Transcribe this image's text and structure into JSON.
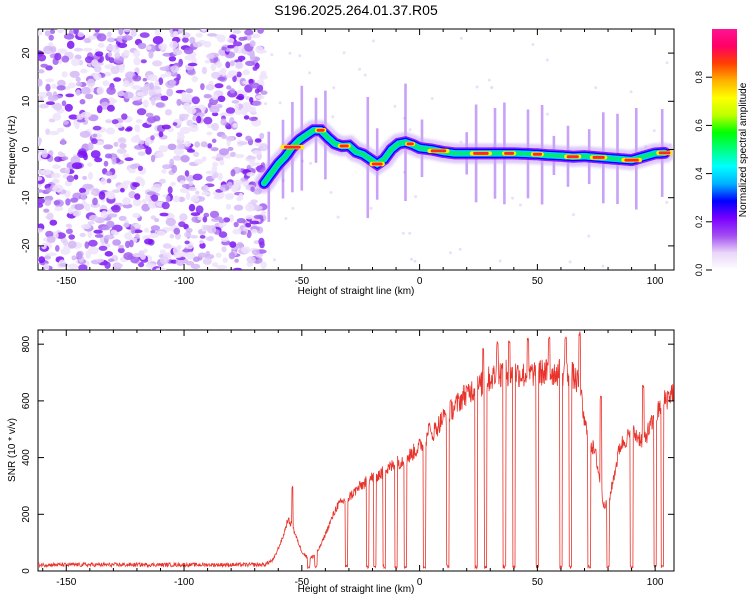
{
  "title": "S196.2025.264.01.37.R05",
  "chart_data": [
    {
      "type": "heatmap",
      "xlabel": "Height of straight line (km)",
      "ylabel": "Frequency (Hz)",
      "xlim": [
        -162,
        108
      ],
      "ylim": [
        -25,
        25
      ],
      "xticks": [
        -150,
        -100,
        -50,
        0,
        50,
        100
      ],
      "yticks": [
        -20,
        -10,
        0,
        10,
        20
      ],
      "colorbar": {
        "label": "Normalized spectral amplitude",
        "range": [
          0,
          1
        ],
        "ticks": [
          0.0,
          0.2,
          0.4,
          0.6,
          0.8
        ],
        "tick_labels": [
          "0.0",
          "0.2",
          "0.4",
          "0.6",
          "0.8"
        ],
        "colors": [
          "#ffffff",
          "#e9d6f9",
          "#a24cf2",
          "#7a00ff",
          "#0000ff",
          "#00b0ff",
          "#00ffff",
          "#00ff80",
          "#00ff00",
          "#bfff00",
          "#ffff00",
          "#ffb000",
          "#ff4000",
          "#ff0066",
          "#ff1493"
        ]
      },
      "noise_region_x": [
        -162,
        -66
      ],
      "ridge": {
        "x": [
          -66,
          -63,
          -60,
          -57,
          -54,
          -51,
          -48,
          -45,
          -42,
          -39,
          -36,
          -33,
          -30,
          -27,
          -24,
          -21,
          -18,
          -15,
          -12,
          -9,
          -6,
          -3,
          0,
          5,
          10,
          15,
          20,
          25,
          30,
          35,
          40,
          45,
          50,
          55,
          60,
          65,
          70,
          75,
          80,
          85,
          90,
          95,
          100,
          104
        ],
        "y": [
          -7,
          -5,
          -3,
          -1.5,
          0.5,
          2,
          3,
          4,
          4,
          2.5,
          1.2,
          0.7,
          0.8,
          -0.5,
          -1,
          -2,
          -3,
          -2,
          0,
          1.2,
          1.5,
          1,
          0.3,
          0,
          -0.5,
          -0.8,
          -0.8,
          -0.8,
          -0.8,
          -0.8,
          -0.8,
          -0.9,
          -1,
          -1.2,
          -1.3,
          -1.5,
          -1.4,
          -1.6,
          -1.8,
          -2,
          -2.2,
          -1.5,
          -0.8,
          -0.7
        ]
      }
    },
    {
      "type": "line",
      "xlabel": "Height of straight line (km)",
      "ylabel": "SNR (10 * v/v)",
      "xlim": [
        -162,
        108
      ],
      "ylim": [
        0,
        850
      ],
      "xticks": [
        -150,
        -100,
        -50,
        0,
        50,
        100
      ],
      "yticks": [
        0,
        200,
        400,
        600,
        800
      ],
      "color": "#e8332b",
      "baseline_envelope": {
        "x": [
          -162,
          -66,
          -62,
          -58,
          -56,
          -54,
          -52,
          -50,
          -47,
          -44,
          -42,
          -38,
          -35,
          -30,
          -25,
          -20,
          -15,
          -10,
          -5,
          0,
          5,
          10,
          15,
          20,
          25,
          30,
          35,
          40,
          45,
          50,
          55,
          60,
          65,
          68,
          70,
          75,
          78,
          80,
          85,
          90,
          95,
          100,
          103,
          108
        ],
        "y": [
          22,
          22,
          40,
          120,
          180,
          160,
          110,
          70,
          40,
          60,
          90,
          170,
          230,
          260,
          300,
          330,
          350,
          380,
          400,
          440,
          480,
          540,
          580,
          630,
          650,
          680,
          700,
          700,
          690,
          700,
          700,
          700,
          690,
          650,
          520,
          400,
          240,
          230,
          440,
          490,
          460,
          540,
          590,
          640
        ]
      },
      "dropouts": [
        -47,
        -44,
        -31,
        -22,
        -19,
        -15,
        -10,
        -6,
        2,
        12,
        24,
        28,
        36,
        40,
        50,
        60,
        64,
        72,
        80,
        90,
        100,
        103
      ],
      "spikes": [
        {
          "x": -54,
          "y": 300
        },
        {
          "x": 4,
          "y": 530
        },
        {
          "x": 20,
          "y": 660
        },
        {
          "x": 27,
          "y": 790
        },
        {
          "x": 33,
          "y": 810
        },
        {
          "x": 38,
          "y": 820
        },
        {
          "x": 46,
          "y": 830
        },
        {
          "x": 55,
          "y": 830
        },
        {
          "x": 62,
          "y": 830
        },
        {
          "x": 68,
          "y": 850
        },
        {
          "x": 77,
          "y": 620
        },
        {
          "x": 95,
          "y": 660
        }
      ]
    }
  ]
}
